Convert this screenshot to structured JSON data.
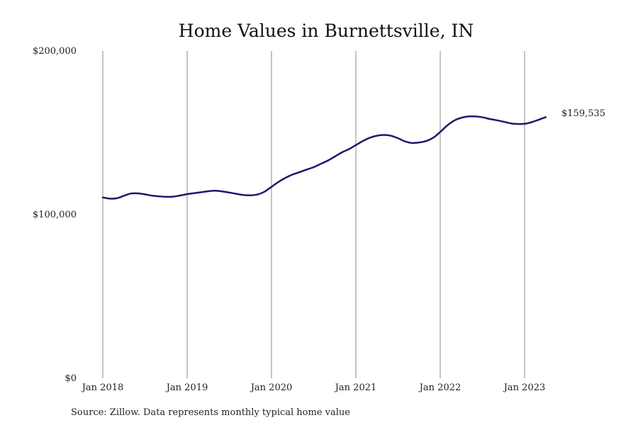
{
  "chart_data": {
    "type": "line",
    "title": "Home Values in Burnettsville, IN",
    "source_note": "Source: Zillow. Data represents monthly typical home value",
    "xlabel": "",
    "ylabel": "",
    "ylim": [
      0,
      200000
    ],
    "y_ticks": [
      {
        "value": 0,
        "label": "$0"
      },
      {
        "value": 100000,
        "label": "$100,000"
      },
      {
        "value": 200000,
        "label": "$200,000"
      }
    ],
    "x_ticks": [
      {
        "value": "2018-01",
        "label": "Jan 2018"
      },
      {
        "value": "2019-01",
        "label": "Jan 2019"
      },
      {
        "value": "2020-01",
        "label": "Jan 2020"
      },
      {
        "value": "2021-01",
        "label": "Jan 2021"
      },
      {
        "value": "2022-01",
        "label": "Jan 2022"
      },
      {
        "value": "2023-01",
        "label": "Jan 2023"
      }
    ],
    "grid": "vertical",
    "line_color": "#1a1a6e",
    "end_label": "$159,535",
    "series": [
      {
        "x": [
          "2018-01",
          "2018-02",
          "2018-03",
          "2018-04",
          "2018-05",
          "2018-06",
          "2018-07",
          "2018-08",
          "2018-09",
          "2018-10",
          "2018-11",
          "2018-12",
          "2019-01",
          "2019-02",
          "2019-03",
          "2019-04",
          "2019-05",
          "2019-06",
          "2019-07",
          "2019-08",
          "2019-09",
          "2019-10",
          "2019-11",
          "2019-12",
          "2020-01",
          "2020-02",
          "2020-03",
          "2020-04",
          "2020-05",
          "2020-06",
          "2020-07",
          "2020-08",
          "2020-09",
          "2020-10",
          "2020-11",
          "2020-12",
          "2021-01",
          "2021-02",
          "2021-03",
          "2021-04",
          "2021-05",
          "2021-06",
          "2021-07",
          "2021-08",
          "2021-09",
          "2021-10",
          "2021-11",
          "2021-12",
          "2022-01",
          "2022-02",
          "2022-03",
          "2022-04",
          "2022-05",
          "2022-06",
          "2022-07",
          "2022-08",
          "2022-09",
          "2022-10",
          "2022-11",
          "2022-12",
          "2023-01",
          "2023-02",
          "2023-03",
          "2023-04"
        ],
        "values": [
          110500,
          109800,
          110000,
          111500,
          112900,
          113000,
          112400,
          111600,
          111200,
          110900,
          111000,
          111700,
          112500,
          113100,
          113700,
          114300,
          114600,
          114200,
          113500,
          112700,
          112000,
          111800,
          112300,
          114000,
          117000,
          120000,
          122500,
          124500,
          126000,
          127500,
          129000,
          131000,
          133000,
          135500,
          138000,
          140000,
          142500,
          145000,
          147000,
          148200,
          148700,
          148200,
          146700,
          144700,
          143800,
          144100,
          145000,
          147000,
          150500,
          154500,
          157500,
          159200,
          160000,
          160000,
          159500,
          158500,
          157700,
          156800,
          155800,
          155400,
          155500,
          156500,
          158000,
          159535
        ]
      }
    ]
  }
}
